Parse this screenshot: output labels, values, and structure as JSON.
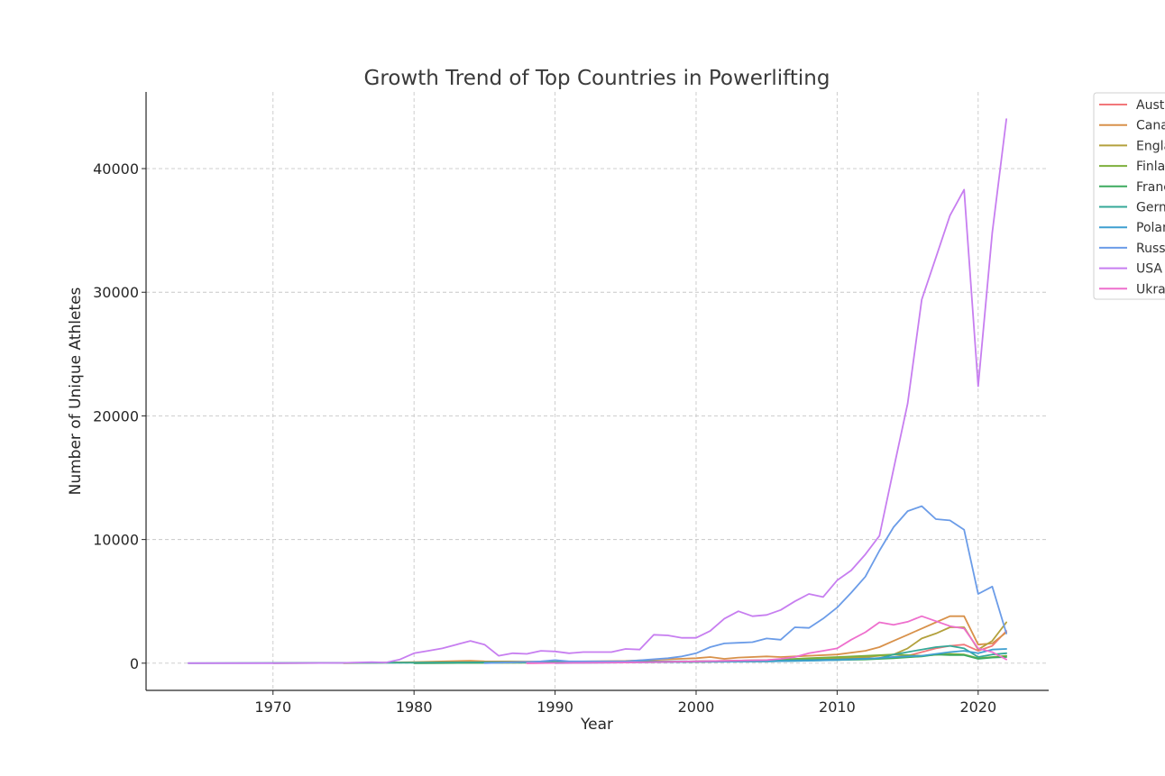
{
  "chart_data": {
    "type": "line",
    "title": "Growth Trend of Top Countries in Powerlifting",
    "xlabel": "Year",
    "ylabel": "Number of Unique Athletes",
    "xlim": [
      1961,
      2025
    ],
    "ylim": [
      -2200,
      46200
    ],
    "xticks": [
      1970,
      1980,
      1990,
      2000,
      2010,
      2020
    ],
    "yticks": [
      0,
      10000,
      20000,
      30000,
      40000
    ],
    "grid": true,
    "legend_position": "outside-right",
    "series": [
      {
        "name": "Australia",
        "color": "#f2777a",
        "x": [
          1988,
          1995,
          2000,
          2005,
          2010,
          2013,
          2015,
          2017,
          2018,
          2019,
          2020,
          2021,
          2022
        ],
        "y": [
          0,
          80,
          150,
          250,
          350,
          400,
          600,
          1200,
          1400,
          1500,
          1000,
          1400,
          2600
        ]
      },
      {
        "name": "Canada",
        "color": "#d8914a",
        "x": [
          1975,
          1980,
          1984,
          1985,
          1990,
          1995,
          2000,
          2001,
          2002,
          2003,
          2005,
          2006,
          2008,
          2010,
          2012,
          2013,
          2014,
          2015,
          2016,
          2017,
          2018,
          2019,
          2020,
          2021,
          2022
        ],
        "y": [
          0,
          80,
          200,
          150,
          120,
          180,
          400,
          500,
          350,
          450,
          550,
          500,
          600,
          700,
          1000,
          1300,
          1800,
          2300,
          2800,
          3300,
          3800,
          3800,
          1500,
          1600,
          2500
        ]
      },
      {
        "name": "England",
        "color": "#b3a13d",
        "x": [
          1980,
          1990,
          2000,
          2005,
          2010,
          2012,
          2014,
          2015,
          2016,
          2017,
          2018,
          2019,
          2020,
          2021,
          2022
        ],
        "y": [
          0,
          50,
          100,
          200,
          400,
          500,
          700,
          1200,
          2000,
          2400,
          2900,
          2900,
          1100,
          1800,
          3300
        ]
      },
      {
        "name": "Finland",
        "color": "#7daf3b",
        "x": [
          1970,
          1980,
          1990,
          2000,
          2005,
          2008,
          2010,
          2012,
          2014,
          2016,
          2018,
          2019,
          2020,
          2021,
          2022
        ],
        "y": [
          0,
          50,
          100,
          150,
          250,
          400,
          500,
          600,
          700,
          600,
          750,
          700,
          400,
          500,
          600
        ]
      },
      {
        "name": "France",
        "color": "#3daa5f",
        "x": [
          1980,
          1990,
          2000,
          2005,
          2010,
          2012,
          2014,
          2016,
          2017,
          2018,
          2019,
          2020,
          2021,
          2022
        ],
        "y": [
          0,
          50,
          100,
          150,
          250,
          300,
          400,
          550,
          700,
          650,
          650,
          350,
          450,
          500
        ]
      },
      {
        "name": "Germany",
        "color": "#35a898",
        "x": [
          1964,
          1980,
          1990,
          2000,
          2005,
          2010,
          2013,
          2014,
          2015,
          2016,
          2017,
          2018,
          2019,
          2020,
          2021,
          2022
        ],
        "y": [
          0,
          40,
          100,
          150,
          200,
          300,
          400,
          700,
          900,
          1100,
          1300,
          1400,
          1200,
          500,
          700,
          800
        ]
      },
      {
        "name": "Poland",
        "color": "#3e9fd0",
        "x": [
          1990,
          1995,
          2000,
          2005,
          2008,
          2010,
          2012,
          2014,
          2016,
          2018,
          2019,
          2020,
          2021,
          2022
        ],
        "y": [
          0,
          50,
          100,
          150,
          200,
          250,
          350,
          500,
          600,
          900,
          1000,
          800,
          1100,
          1150
        ]
      },
      {
        "name": "Russia",
        "color": "#6b9ce8",
        "x": [
          1985,
          1988,
          1989,
          1990,
          1991,
          1995,
          1998,
          1999,
          2000,
          2001,
          2002,
          2003,
          2004,
          2005,
          2006,
          2007,
          2008,
          2009,
          2010,
          2011,
          2012,
          2013,
          2014,
          2015,
          2016,
          2017,
          2018,
          2019,
          2020,
          2021,
          2022
        ],
        "y": [
          0,
          100,
          150,
          250,
          150,
          150,
          400,
          550,
          800,
          1300,
          1600,
          1650,
          1700,
          2000,
          1900,
          2900,
          2850,
          3600,
          4500,
          5700,
          7000,
          9100,
          11000,
          12300,
          12700,
          11650,
          11550,
          10800,
          5600,
          6200,
          2400
        ]
      },
      {
        "name": "USA",
        "color": "#c77ef0",
        "x": [
          1964,
          1970,
          1975,
          1977,
          1978,
          1979,
          1980,
          1981,
          1982,
          1983,
          1984,
          1985,
          1986,
          1987,
          1988,
          1989,
          1990,
          1991,
          1992,
          1993,
          1994,
          1995,
          1996,
          1997,
          1998,
          1999,
          2000,
          2001,
          2002,
          2003,
          2004,
          2005,
          2006,
          2007,
          2008,
          2009,
          2010,
          2011,
          2012,
          2013,
          2014,
          2015,
          2016,
          2017,
          2018,
          2019,
          2020,
          2021,
          2022
        ],
        "y": [
          0,
          0,
          20,
          80,
          50,
          300,
          800,
          1000,
          1200,
          1500,
          1800,
          1500,
          600,
          800,
          750,
          1000,
          950,
          800,
          900,
          900,
          900,
          1150,
          1100,
          2300,
          2250,
          2050,
          2050,
          2600,
          3600,
          4200,
          3800,
          3900,
          4300,
          5000,
          5600,
          5350,
          6700,
          7500,
          8800,
          10300,
          15700,
          21000,
          29400,
          32800,
          36200,
          38300,
          22400,
          34800,
          44000
        ]
      },
      {
        "name": "Ukraine",
        "color": "#ee6fcd",
        "x": [
          1988,
          1995,
          2000,
          2005,
          2006,
          2007,
          2008,
          2009,
          2010,
          2011,
          2012,
          2013,
          2014,
          2015,
          2016,
          2017,
          2018,
          2019,
          2020,
          2021,
          2022
        ],
        "y": [
          0,
          50,
          150,
          250,
          350,
          500,
          800,
          1000,
          1200,
          1900,
          2500,
          3300,
          3100,
          3350,
          3800,
          3400,
          3000,
          2800,
          1200,
          900,
          300
        ]
      }
    ]
  }
}
